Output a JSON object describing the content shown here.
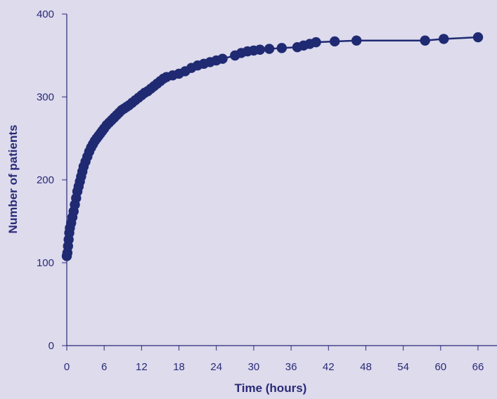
{
  "chart_data": {
    "type": "line",
    "title": "",
    "xlabel": "Time (hours)",
    "ylabel": "Number of patients",
    "xlim": [
      0,
      66
    ],
    "ylim": [
      0,
      400
    ],
    "x_ticks": [
      "0",
      "6",
      "12",
      "18",
      "24",
      "30",
      "36",
      "42",
      "48",
      "54",
      "60",
      "66"
    ],
    "y_ticks": [
      "0",
      "100",
      "200",
      "300",
      "400"
    ],
    "grid": false,
    "legend": "none",
    "colors": {
      "background": "#dddbec",
      "series": "#1f2a72",
      "axis": "#2a2a78",
      "text": "#2a2a78"
    },
    "series": [
      {
        "x": [
          0,
          0.1,
          0.2,
          0.3,
          0.4,
          0.5,
          0.7,
          0.9,
          1.1,
          1.3,
          1.5,
          1.7,
          1.9,
          2.1,
          2.3,
          2.5,
          2.7,
          3.0,
          3.3,
          3.6,
          3.9,
          4.2,
          4.5,
          4.8,
          5.1,
          5.4,
          5.7,
          6.0,
          6.4,
          6.8,
          7.2,
          7.6,
          8.0,
          8.4,
          8.8,
          9.2,
          9.6,
          10.0,
          10.5,
          11.0,
          11.5,
          12.0,
          12.5,
          13.0,
          13.5,
          14.0,
          14.5,
          15.0,
          15.5,
          16.0,
          17.0,
          18.0,
          19.0,
          20.0,
          21.0,
          22.0,
          23.0,
          24.0,
          25.0,
          27.0,
          28.0,
          29.0,
          30.0,
          31.0,
          32.5,
          34.5,
          37.0,
          38.0,
          39.0,
          40.0,
          43.0,
          46.5,
          57.5,
          60.5,
          66.0
        ],
        "values": [
          108,
          112,
          120,
          128,
          136,
          142,
          148,
          155,
          162,
          170,
          178,
          186,
          192,
          198,
          204,
          210,
          216,
          222,
          228,
          234,
          239,
          243,
          247,
          250,
          253,
          256,
          259,
          262,
          266,
          269,
          272,
          275,
          278,
          281,
          284,
          286,
          288,
          290,
          293,
          296,
          299,
          302,
          305,
          307,
          310,
          313,
          316,
          319,
          322,
          324,
          326,
          328,
          331,
          335,
          338,
          340,
          342,
          344,
          346,
          350,
          353,
          355,
          356,
          357,
          358,
          359,
          360,
          362,
          364,
          366,
          367,
          368,
          368,
          370,
          372
        ]
      }
    ]
  }
}
